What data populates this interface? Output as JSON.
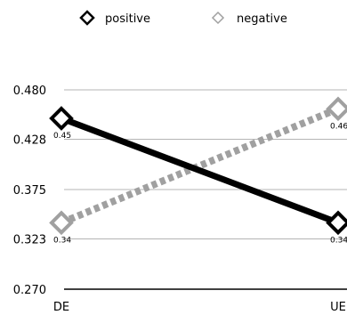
{
  "chart_data": {
    "type": "line",
    "title": "",
    "xlabel": "",
    "ylabel": "",
    "categories": [
      "DE",
      "UE"
    ],
    "ylim": [
      0.27,
      0.48
    ],
    "yticks": [
      0.27,
      0.323,
      0.375,
      0.428,
      0.48
    ],
    "ytick_labels": [
      "0.270",
      "0.323",
      "0.375",
      "0.428",
      "0.480"
    ],
    "grid": true,
    "legend_position": "top",
    "series": [
      {
        "name": "positive",
        "values": [
          0.45,
          0.34
        ],
        "value_labels": [
          "0.45",
          "0.34"
        ],
        "color": "#000000",
        "style": "solid",
        "marker": "diamond-open"
      },
      {
        "name": "negative",
        "values": [
          0.34,
          0.46
        ],
        "value_labels": [
          "0.34",
          "0.46"
        ],
        "color": "#a0a0a0",
        "style": "dotted",
        "marker": "diamond-open"
      }
    ]
  }
}
